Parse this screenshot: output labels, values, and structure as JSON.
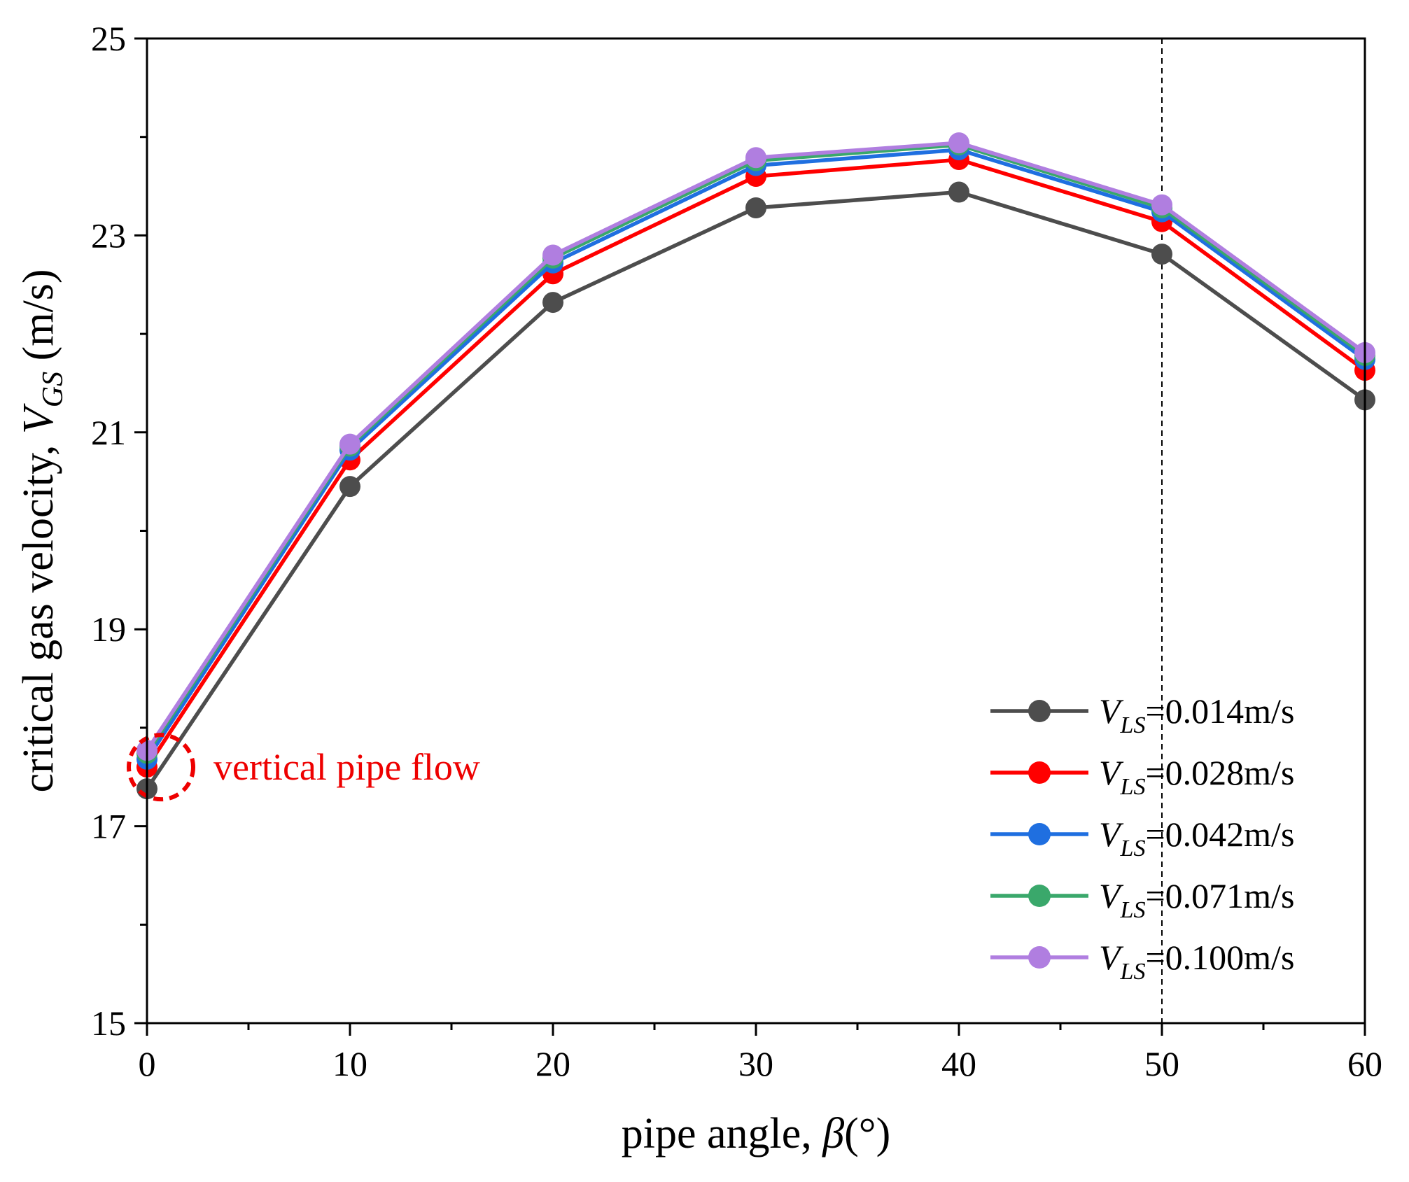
{
  "chart_data": {
    "type": "line",
    "x": [
      0,
      10,
      20,
      30,
      40,
      50,
      60
    ],
    "xlim": [
      0,
      60
    ],
    "ylim": [
      15,
      25
    ],
    "xticks": [
      0,
      10,
      20,
      30,
      40,
      50,
      60
    ],
    "xminor": [
      5,
      15,
      25,
      35,
      45,
      55
    ],
    "yticks": [
      15,
      17,
      19,
      21,
      23,
      25
    ],
    "yminor": [
      16,
      18,
      20,
      22,
      24
    ],
    "xlabel": {
      "main": "pipe angle, ",
      "symbol": "β",
      "unit": "(°)"
    },
    "ylabel": {
      "main": "critical gas velocity, ",
      "symbol": "V",
      "sub": "GS",
      "unit": " (m/s)"
    },
    "vline_x": 50,
    "series": [
      {
        "name": "V_LS=0.014m/s",
        "sym": "V",
        "sub": "LS",
        "value_text": "=0.014m/s",
        "color": "#4d4d4d",
        "values": [
          17.38,
          20.45,
          22.32,
          23.28,
          23.44,
          22.81,
          21.33
        ]
      },
      {
        "name": "V_LS=0.028m/s",
        "sym": "V",
        "sub": "LS",
        "value_text": "=0.028m/s",
        "color": "#ff0000",
        "values": [
          17.6,
          20.72,
          22.61,
          23.6,
          23.77,
          23.14,
          21.63
        ]
      },
      {
        "name": "V_LS=0.042m/s",
        "sym": "V",
        "sub": "LS",
        "value_text": "=0.042m/s",
        "color": "#1f6fe0",
        "values": [
          17.68,
          20.82,
          22.72,
          23.71,
          23.87,
          23.24,
          21.74
        ]
      },
      {
        "name": "V_LS=0.071m/s",
        "sym": "V",
        "sub": "LS",
        "value_text": "=0.071m/s",
        "color": "#3aa86b",
        "values": [
          17.74,
          20.86,
          22.77,
          23.76,
          23.92,
          23.28,
          21.78
        ]
      },
      {
        "name": "V_LS=0.100m/s",
        "sym": "V",
        "sub": "LS",
        "value_text": "=0.100m/s",
        "color": "#b07ee0",
        "values": [
          17.77,
          20.88,
          22.8,
          23.79,
          23.94,
          23.31,
          21.81
        ]
      }
    ],
    "annotation": {
      "text": "vertical pipe flow",
      "color": "#ee0000",
      "x": 0,
      "y": 17.6
    }
  }
}
